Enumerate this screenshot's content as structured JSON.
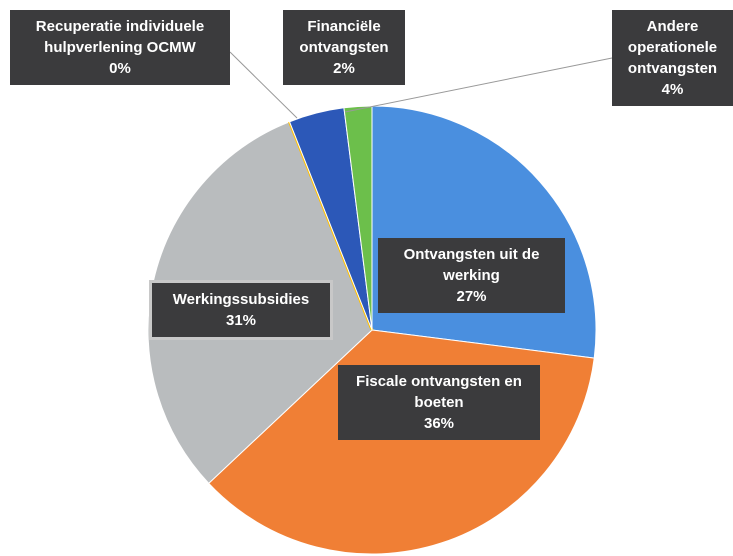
{
  "chart_data": {
    "type": "pie",
    "categories": [
      "Ontvangsten uit de werking",
      "Fiscale ontvangsten en boeten",
      "Werkingssubsidies",
      "Recuperatie individuele hulpverlening OCMW",
      "Andere operationele ontvangsten",
      "Financiële ontvangsten"
    ],
    "values": [
      27,
      36,
      31,
      0,
      4,
      2
    ],
    "value_labels": [
      "27%",
      "36%",
      "31%",
      "0%",
      "4%",
      "2%"
    ],
    "colors": [
      "#4a8fdf",
      "#f07f35",
      "#b9bcbe",
      "#ffc000",
      "#2c58b8",
      "#6cbf4b"
    ]
  }
}
